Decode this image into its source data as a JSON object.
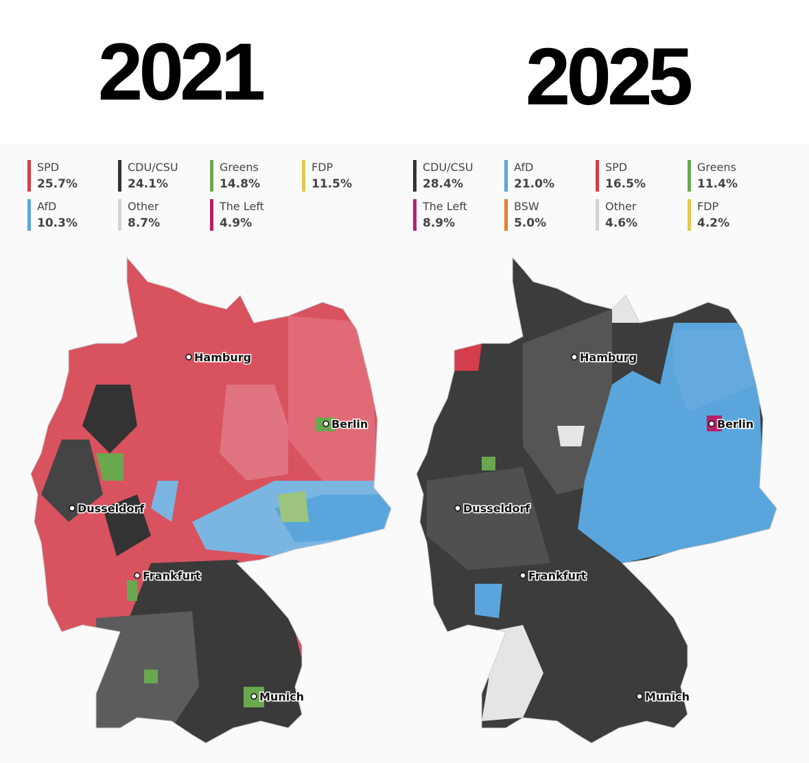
{
  "maps": [
    {
      "title": "2021",
      "legend": [
        {
          "party": "SPD",
          "share": "25.7%",
          "color": "#d43d4c"
        },
        {
          "party": "CDU/CSU",
          "share": "24.1%",
          "color": "#333333"
        },
        {
          "party": "Greens",
          "share": "14.8%",
          "color": "#6aa84f"
        },
        {
          "party": "FDP",
          "share": "11.5%",
          "color": "#e3c84e"
        },
        {
          "party": "AfD",
          "share": "10.3%",
          "color": "#5aa6dc"
        },
        {
          "party": "Other",
          "share": "8.7%",
          "color": "#d3d3d3"
        },
        {
          "party": "The Left",
          "share": "4.9%",
          "color": "#b8206a"
        }
      ],
      "cities": [
        "Hamburg",
        "Berlin",
        "Dusseldorf",
        "Frankfurt",
        "Munich"
      ]
    },
    {
      "title": "2025",
      "legend": [
        {
          "party": "CDU/CSU",
          "share": "28.4%",
          "color": "#333333"
        },
        {
          "party": "AfD",
          "share": "21.0%",
          "color": "#5aa6dc"
        },
        {
          "party": "SPD",
          "share": "16.5%",
          "color": "#d43d4c"
        },
        {
          "party": "Greens",
          "share": "11.4%",
          "color": "#6aa84f"
        },
        {
          "party": "The Left",
          "share": "8.9%",
          "color": "#b8206a"
        },
        {
          "party": "BSW",
          "share": "5.0%",
          "color": "#e8812a"
        },
        {
          "party": "Other",
          "share": "4.6%",
          "color": "#d3d3d3"
        },
        {
          "party": "FDP",
          "share": "4.2%",
          "color": "#e3c84e"
        }
      ],
      "cities": [
        "Hamburg",
        "Berlin",
        "Dusseldorf",
        "Frankfurt",
        "Munich"
      ]
    }
  ]
}
